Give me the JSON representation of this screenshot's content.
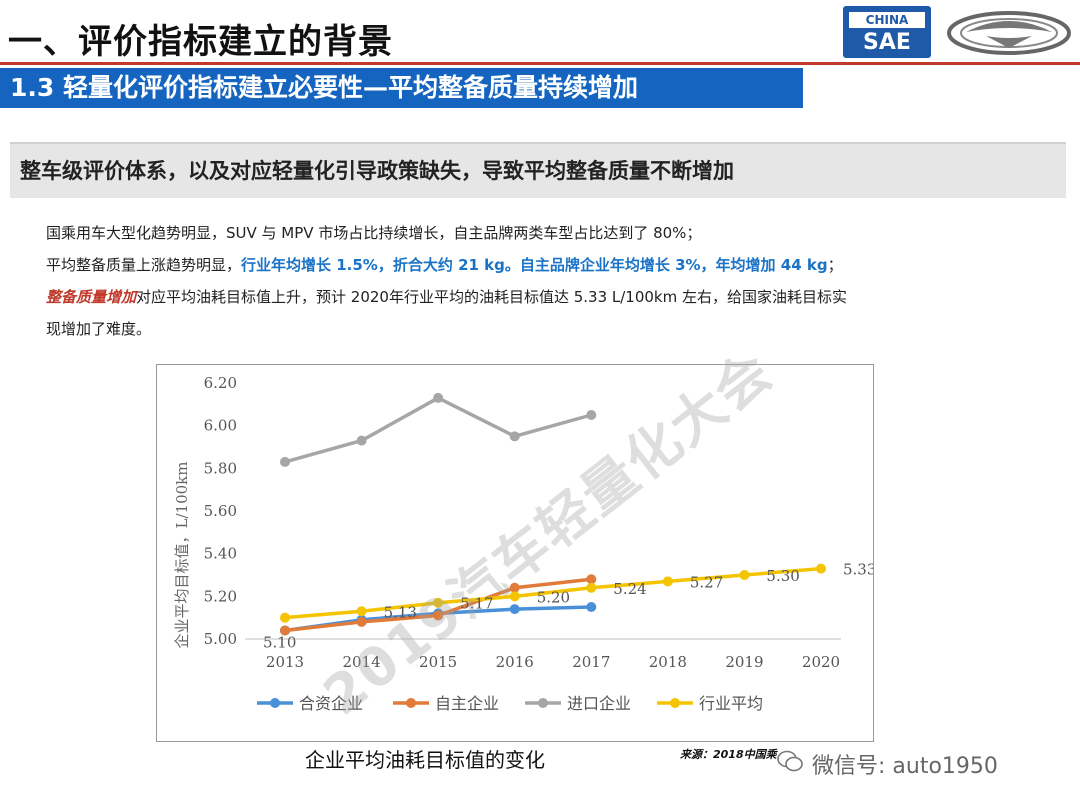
{
  "header": {
    "title": "一、评价指标建立的背景",
    "section": "1.3 轻量化评价指标建立必要性—平均整备质量持续增加",
    "logo_top": "CHINA",
    "logo_bottom": "SAE"
  },
  "banner": "整车级评价体系，以及对应轻量化引导政策缺失，导致平均整备质量不断增加",
  "paragraphs": {
    "p1": "国乘用车大型化趋势明显，SUV 与 MPV 市场占比持续增长，自主品牌两类车型占比达到了 80%；",
    "p2_a": "平均整备质量上涨趋势明显，",
    "p2_b": "行业年均增长 1.5%，折合大约 21 kg。自主品牌企业年均增长 3%，年均增加 44 kg",
    "p2_c": "；",
    "p3_a": "整备质量增加",
    "p3_b": "对应平均油耗目标值上升，预计 2020年行业平均的油耗目标值达 5.33 L/100km 左右，给国家油耗目标实",
    "p4": "现增加了难度。"
  },
  "caption": "企业平均油耗目标值的变化",
  "source": "来源：2018中国乘",
  "wechat": "微信号: auto1950",
  "watermark": "2019汽车轻量化大会",
  "colors": {
    "accent_blue": "#1565c0",
    "red": "#c0392b",
    "hl_blue": "#1a73c7"
  },
  "chart_data": {
    "type": "line",
    "categories": [
      "2013",
      "2014",
      "2015",
      "2016",
      "2017",
      "2018",
      "2019",
      "2020"
    ],
    "ylabel": "企业平均目标值，L/100km",
    "ylim": [
      5.0,
      6.2
    ],
    "yticks": [
      "5.00",
      "5.20",
      "5.40",
      "5.60",
      "5.80",
      "6.00",
      "6.20"
    ],
    "legend_position": "bottom",
    "series": [
      {
        "name": "合资企业",
        "color": "#4a90d9",
        "values": [
          5.04,
          5.09,
          5.12,
          5.14,
          5.15,
          null,
          null,
          null
        ]
      },
      {
        "name": "自主企业",
        "color": "#e07b39",
        "values": [
          5.04,
          5.08,
          5.11,
          5.24,
          5.28,
          null,
          null,
          null
        ]
      },
      {
        "name": "进口企业",
        "color": "#a6a6a6",
        "values": [
          5.83,
          5.93,
          6.13,
          5.95,
          6.05,
          null,
          null,
          null
        ]
      },
      {
        "name": "行业平均",
        "color": "#f5c400",
        "values": [
          5.1,
          5.13,
          5.17,
          5.2,
          5.24,
          5.27,
          5.3,
          5.33
        ]
      }
    ],
    "data_labels": [
      "5.10",
      "5.13",
      "5.17",
      "5.20",
      "5.24",
      "5.27",
      "5.30",
      "5.33"
    ]
  }
}
